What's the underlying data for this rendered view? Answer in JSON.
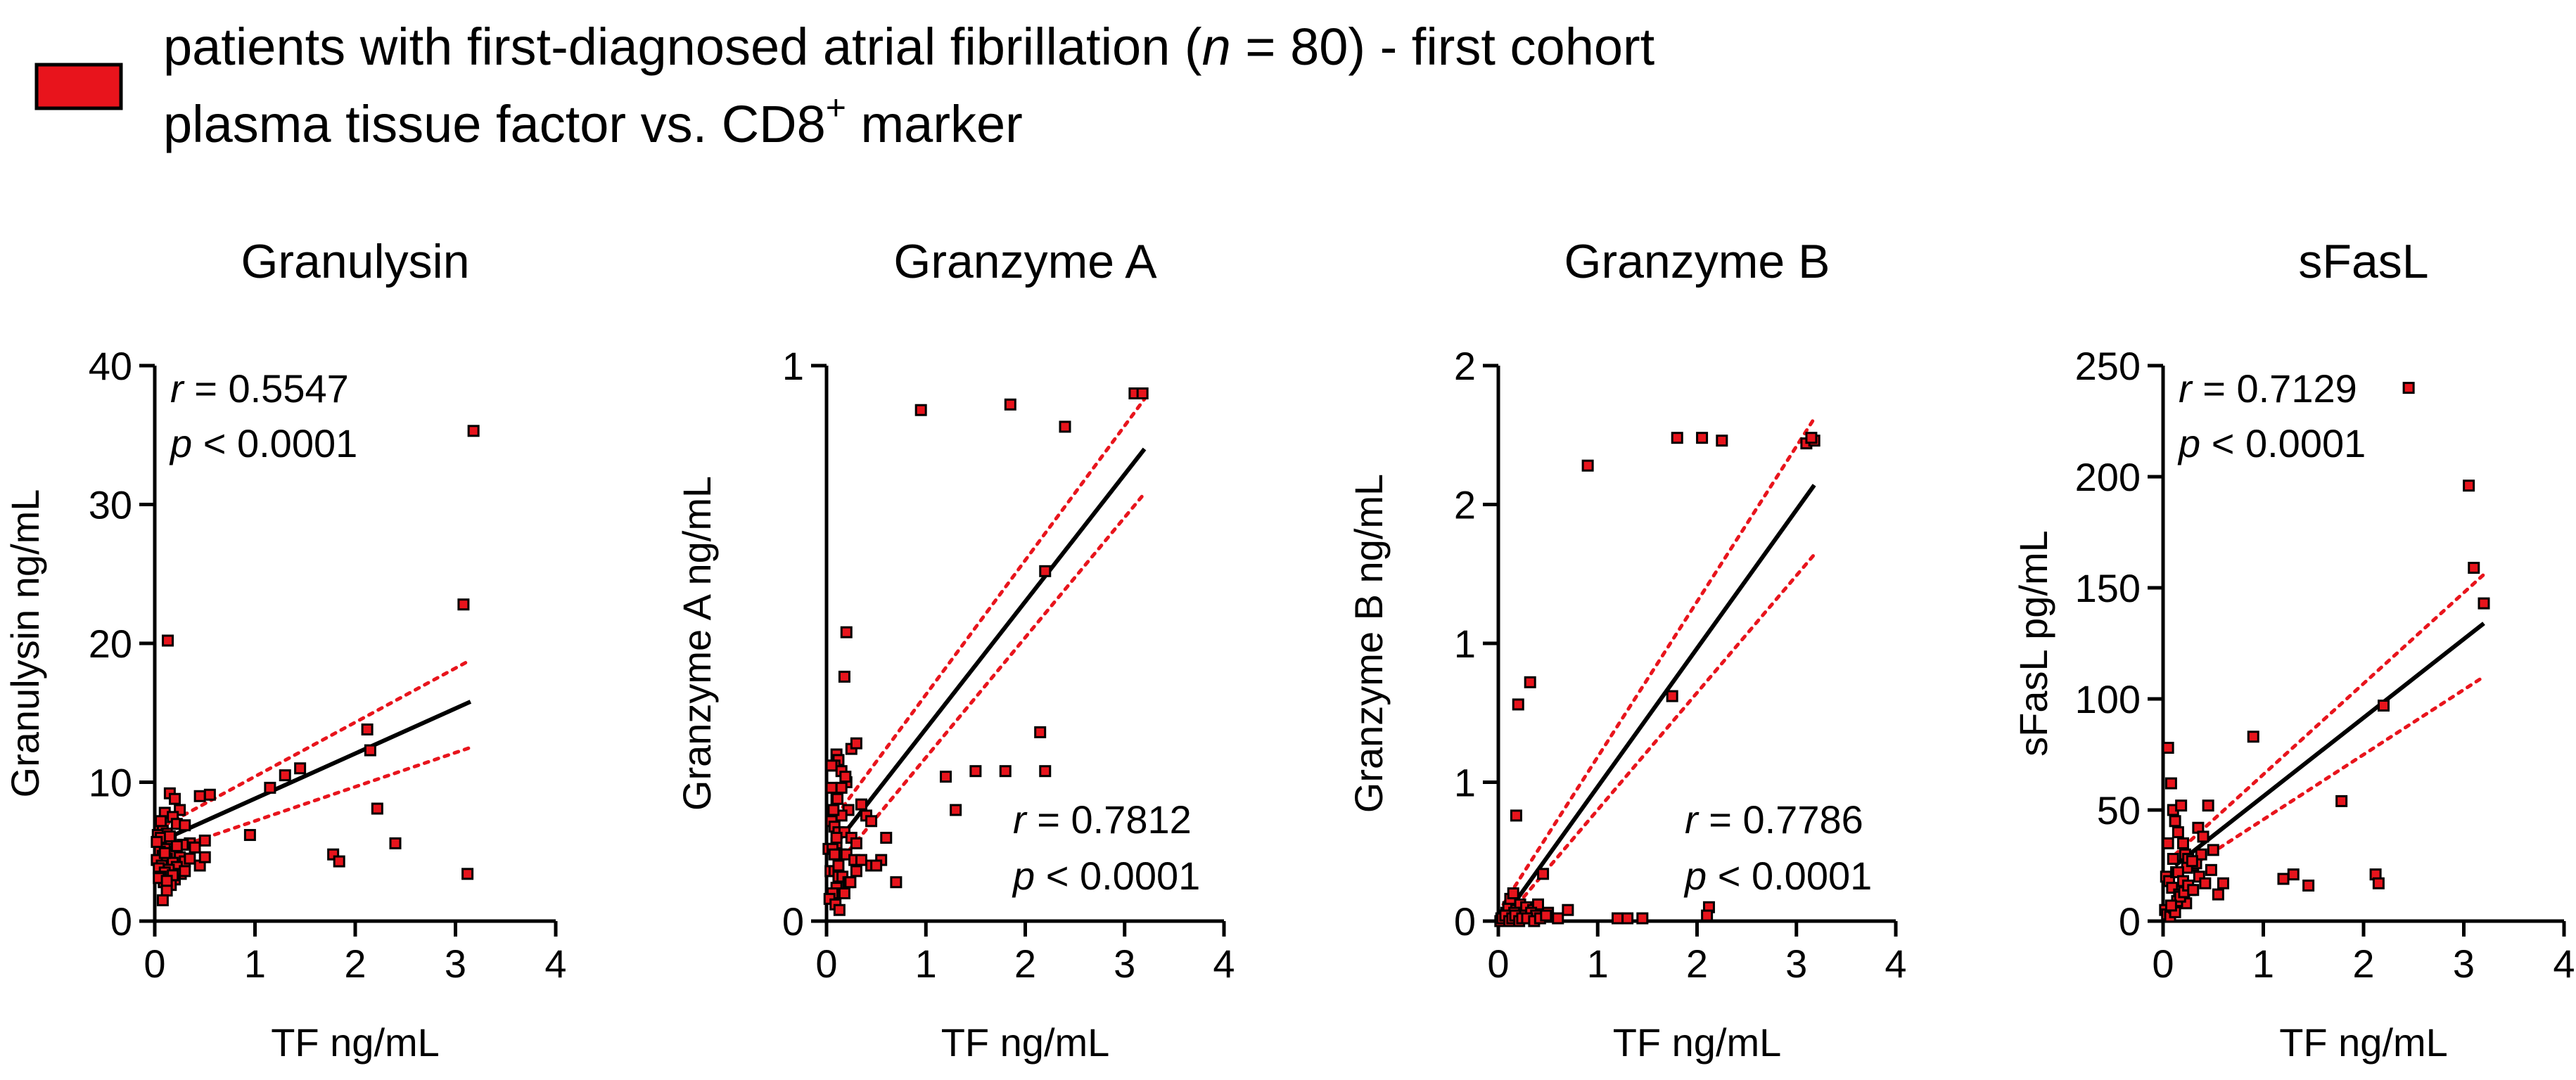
{
  "legend": {
    "swatch_color": "#e8141c",
    "line1_a": "patients with first-diagnosed atrial fibrillation (",
    "line1_n": "n",
    "line1_b": " = 80) - first cohort",
    "line2_a": "plasma tissue factor vs. CD8",
    "line2_sup": "+",
    "line2_b": " marker"
  },
  "colors": {
    "point_fill": "#e8141c",
    "point_stroke": "#000000",
    "ci_line": "#e8141c",
    "fit_line": "#000000"
  },
  "chart_data": [
    {
      "type": "scatter",
      "title": "Granulysin",
      "xlabel": "TF ng/mL",
      "ylabel": "Granulysin ng/mL",
      "xlim": [
        0,
        4
      ],
      "ylim": [
        0,
        40
      ],
      "xticks": [
        0,
        1,
        2,
        3,
        4
      ],
      "yticks": [
        0,
        10,
        20,
        30,
        40
      ],
      "xtick_labels": [
        "0",
        "1",
        "2",
        "3",
        "4"
      ],
      "ytick_labels": [
        "0",
        "10",
        "20",
        "30",
        "40"
      ],
      "stat_r_label": "r",
      "stat_r_value": " = 0.5547",
      "stat_p_label": "p",
      "stat_p_value": " < 0.0001",
      "stat_position": "top-left",
      "fit": {
        "x": [
          0.1,
          3.15
        ],
        "y": [
          5.9,
          15.8
        ]
      },
      "ci_upper": {
        "x": [
          0.1,
          3.15
        ],
        "y": [
          6.9,
          18.8
        ]
      },
      "ci_lower": {
        "x": [
          0.1,
          3.15
        ],
        "y": [
          5.0,
          12.5
        ]
      },
      "points": {
        "x": [
          0.13,
          3.18,
          3.08,
          3.12,
          2.12,
          2.15,
          2.22,
          2.4,
          1.78,
          1.84,
          1.45,
          1.3,
          1.15,
          0.95,
          0.55,
          0.45,
          0.5,
          0.15,
          0.2,
          0.25,
          0.1,
          0.18,
          0.22,
          0.3,
          0.05,
          0.08,
          0.12,
          0.03,
          0.06,
          0.16,
          0.35,
          0.28,
          0.4,
          0.1,
          0.2,
          0.05,
          0.15,
          0.08,
          0.25,
          0.12,
          0.02,
          0.3,
          0.18,
          0.07,
          0.22,
          0.04,
          0.14,
          0.1,
          0.26,
          0.06,
          0.2,
          0.09,
          0.16,
          0.35,
          0.45,
          0.5,
          0.04,
          0.12,
          0.08,
          0.02,
          0.3,
          0.15,
          0.22,
          0.1,
          0.06,
          0.18,
          0.12
        ],
        "y": [
          20.2,
          35.3,
          22.8,
          3.4,
          13.8,
          12.3,
          8.1,
          5.6,
          4.8,
          4.3,
          11.0,
          10.5,
          9.6,
          6.2,
          9.1,
          9.0,
          5.8,
          9.2,
          8.8,
          8.0,
          7.8,
          7.5,
          7.0,
          6.9,
          6.8,
          6.5,
          6.3,
          6.2,
          6.0,
          5.9,
          5.6,
          5.5,
          5.3,
          5.2,
          5.0,
          5.0,
          4.8,
          4.7,
          4.6,
          4.5,
          4.4,
          4.3,
          4.2,
          4.0,
          3.9,
          3.8,
          3.7,
          3.5,
          3.4,
          3.2,
          3.0,
          2.8,
          2.6,
          4.5,
          4.0,
          4.6,
          3.1,
          2.2,
          1.5,
          5.7,
          3.6,
          6.1,
          5.4,
          4.9,
          7.2,
          3.3,
          2.9
        ]
      }
    },
    {
      "type": "scatter",
      "title": "Granzyme A",
      "xlabel": "TF ng/mL",
      "ylabel": "Granzyme A ng/mL",
      "xlim": [
        0,
        4
      ],
      "ylim": [
        0,
        1
      ],
      "xticks": [
        0,
        1,
        2,
        3,
        4
      ],
      "yticks": [
        0,
        1
      ],
      "xtick_labels": [
        "0",
        "1",
        "2",
        "3",
        "4"
      ],
      "ytick_labels": [
        "0",
        "1"
      ],
      "stat_r_label": "r",
      "stat_r_value": " = 0.7812",
      "stat_p_label": "p",
      "stat_p_value": " < 0.0001",
      "stat_position": "bottom-right",
      "fit": {
        "x": [
          0.1,
          3.2
        ],
        "y": [
          0.14,
          0.85
        ]
      },
      "ci_upper": {
        "x": [
          0.1,
          3.2
        ],
        "y": [
          0.19,
          0.94
        ]
      },
      "ci_lower": {
        "x": [
          0.1,
          3.2
        ],
        "y": [
          0.1,
          0.77
        ]
      },
      "points": {
        "x": [
          0.95,
          1.85,
          2.4,
          3.1,
          3.18,
          2.2,
          2.15,
          2.2,
          1.2,
          1.3,
          1.5,
          1.8,
          0.2,
          0.18,
          0.1,
          0.12,
          0.25,
          0.3,
          0.08,
          0.15,
          0.2,
          0.05,
          0.1,
          0.35,
          0.22,
          0.4,
          0.45,
          0.55,
          0.6,
          0.7,
          0.15,
          0.05,
          0.08,
          0.12,
          0.18,
          0.25,
          0.3,
          0.1,
          0.02,
          0.06,
          0.14,
          0.2,
          0.28,
          0.35,
          0.45,
          0.5,
          0.04,
          0.08,
          0.12,
          0.16,
          0.22,
          0.1,
          0.06,
          0.03,
          0.09,
          0.13,
          0.18,
          0.24,
          0.3,
          0.07,
          0.11,
          0.15,
          0.19,
          0.05,
          0.1,
          0.08,
          0.12
        ],
        "y": [
          0.92,
          0.93,
          0.89,
          0.95,
          0.95,
          0.63,
          0.34,
          0.27,
          0.26,
          0.2,
          0.27,
          0.27,
          0.52,
          0.44,
          0.3,
          0.29,
          0.31,
          0.32,
          0.28,
          0.27,
          0.25,
          0.24,
          0.22,
          0.21,
          0.2,
          0.19,
          0.18,
          0.11,
          0.15,
          0.07,
          0.19,
          0.18,
          0.17,
          0.16,
          0.16,
          0.15,
          0.14,
          0.14,
          0.13,
          0.13,
          0.12,
          0.12,
          0.11,
          0.11,
          0.1,
          0.1,
          0.09,
          0.09,
          0.08,
          0.08,
          0.07,
          0.06,
          0.05,
          0.04,
          0.03,
          0.02,
          0.05,
          0.07,
          0.09,
          0.2,
          0.22,
          0.24,
          0.26,
          0.28,
          0.15,
          0.12,
          0.1
        ]
      }
    },
    {
      "type": "scatter",
      "title": "Granzyme B",
      "xlabel": "TF ng/mL",
      "ylabel": "Granzyme B ng/mL",
      "xlim": [
        0,
        4
      ],
      "ylim": [
        0,
        2
      ],
      "xticks": [
        0,
        1,
        2,
        3,
        4
      ],
      "yticks": [
        0,
        0.5,
        1,
        1.5,
        2
      ],
      "xtick_labels": [
        "0",
        "1",
        "2",
        "3",
        "4"
      ],
      "ytick_labels": [
        "0",
        "1",
        "1",
        "2",
        "2"
      ],
      "stat_r_label": "r",
      "stat_r_value": " = 0.7786",
      "stat_p_label": "p",
      "stat_p_value": " < 0.0001",
      "stat_position": "bottom-right",
      "fit": {
        "x": [
          0.05,
          3.18
        ],
        "y": [
          0.01,
          1.57
        ]
      },
      "ci_upper": {
        "x": [
          0.05,
          3.18
        ],
        "y": [
          0.06,
          1.81
        ]
      },
      "ci_lower": {
        "x": [
          0.05,
          3.18
        ],
        "y": [
          0.0,
          1.32
        ]
      },
      "points": {
        "x": [
          0.9,
          1.8,
          2.05,
          2.25,
          3.1,
          3.18,
          3.15,
          1.75,
          0.32,
          0.2,
          0.18,
          0.45,
          2.12,
          2.1,
          1.2,
          1.3,
          1.45,
          0.05,
          0.08,
          0.1,
          0.12,
          0.15,
          0.18,
          0.2,
          0.22,
          0.25,
          0.28,
          0.3,
          0.35,
          0.4,
          0.45,
          0.5,
          0.6,
          0.7,
          0.03,
          0.06,
          0.09,
          0.13,
          0.16,
          0.19,
          0.23,
          0.27,
          0.33,
          0.38,
          0.02,
          0.04,
          0.07,
          0.11,
          0.14,
          0.17,
          0.21,
          0.24,
          0.29,
          0.36,
          0.42,
          0.48
        ],
        "y": [
          1.64,
          1.74,
          1.74,
          1.73,
          1.72,
          1.73,
          1.74,
          0.81,
          0.86,
          0.78,
          0.38,
          0.17,
          0.05,
          0.02,
          0.01,
          0.01,
          0.01,
          0.02,
          0.03,
          0.05,
          0.08,
          0.1,
          0.04,
          0.02,
          0.06,
          0.03,
          0.05,
          0.02,
          0.04,
          0.06,
          0.02,
          0.03,
          0.01,
          0.04,
          0.01,
          0.02,
          0.01,
          0.02,
          0.03,
          0.01,
          0.02,
          0.01,
          0.03,
          0.02,
          0.0,
          0.01,
          0.02,
          0.0,
          0.01,
          0.02,
          0.0,
          0.01,
          0.01,
          0.0,
          0.01,
          0.02
        ]
      }
    },
    {
      "type": "scatter",
      "title": "sFasL",
      "xlabel": "TF ng/mL",
      "ylabel": "sFasL pg/mL",
      "xlim": [
        0,
        4
      ],
      "ylim": [
        0,
        250
      ],
      "xticks": [
        0,
        1,
        2,
        3,
        4
      ],
      "yticks": [
        0,
        50,
        100,
        150,
        200,
        250
      ],
      "xtick_labels": [
        "0",
        "1",
        "2",
        "3",
        "4"
      ],
      "ytick_labels": [
        "0",
        "50",
        "100",
        "150",
        "200",
        "250"
      ],
      "stat_r_label": "r",
      "stat_r_value": " = 0.7129",
      "stat_p_label": "p",
      "stat_p_value": " < 0.0001",
      "stat_position": "top-left",
      "fit": {
        "x": [
          0.12,
          3.2
        ],
        "y": [
          25,
          134
        ]
      },
      "ci_upper": {
        "x": [
          0.12,
          3.2
        ],
        "y": [
          30,
          156
        ]
      },
      "ci_lower": {
        "x": [
          0.12,
          3.2
        ],
        "y": [
          20,
          110
        ]
      },
      "points": {
        "x": [
          2.45,
          3.05,
          3.1,
          3.2,
          2.2,
          1.78,
          2.12,
          2.15,
          1.2,
          1.3,
          1.45,
          0.9,
          0.6,
          0.05,
          0.08,
          0.1,
          0.12,
          0.15,
          0.18,
          0.2,
          0.22,
          0.25,
          0.3,
          0.35,
          0.4,
          0.45,
          0.5,
          0.03,
          0.06,
          0.09,
          0.13,
          0.16,
          0.19,
          0.23,
          0.27,
          0.33,
          0.38,
          0.02,
          0.04,
          0.07,
          0.11,
          0.14,
          0.17,
          0.21,
          0.24,
          0.29,
          0.36,
          0.42,
          0.48,
          0.55,
          0.05,
          0.1,
          0.15,
          0.2,
          0.25,
          0.3,
          0.12,
          0.08
        ],
        "y": [
          240,
          196,
          159,
          143,
          97,
          54,
          21,
          17,
          19,
          21,
          16,
          83,
          17,
          78,
          62,
          50,
          45,
          40,
          52,
          35,
          30,
          28,
          25,
          42,
          38,
          52,
          32,
          20,
          18,
          15,
          22,
          12,
          10,
          8,
          14,
          26,
          30,
          5,
          3,
          2,
          6,
          9,
          11,
          13,
          24,
          27,
          20,
          17,
          23,
          12,
          35,
          28,
          22,
          18,
          16,
          14,
          4,
          7
        ]
      }
    }
  ]
}
